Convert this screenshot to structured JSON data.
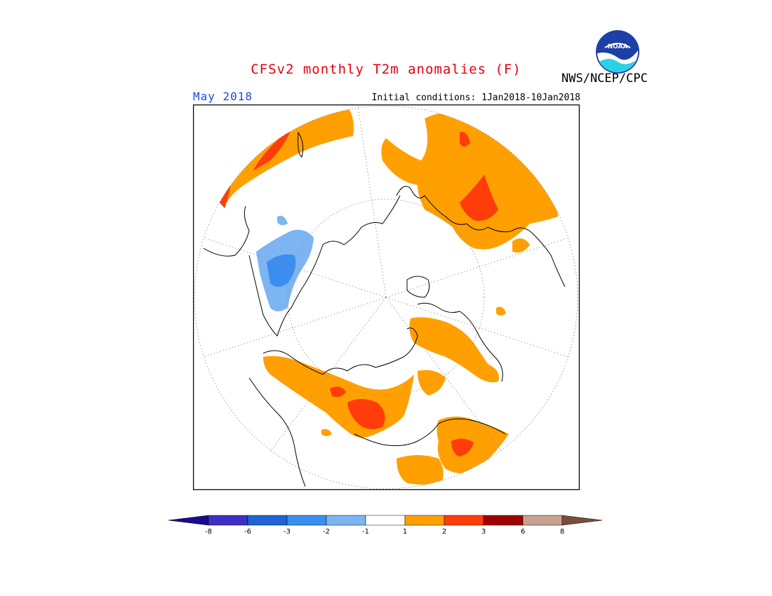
{
  "header": {
    "title": "CFSv2 monthly T2m anomalies (F)",
    "title_color": "#e8000b",
    "month": "May 2018",
    "month_color": "#1f48e8",
    "initial_conditions": "Initial conditions: 1Jan2018-10Jan2018",
    "agency": "NWS/NCEP/CPC",
    "logo_text": "NOAA"
  },
  "map": {
    "projection": "north polar stereographic",
    "variable": "2m temperature anomaly",
    "units": "F"
  },
  "colorbar": {
    "tick_labels": [
      "-8",
      "-6",
      "-3",
      "-2",
      "-1",
      "1",
      "2",
      "3",
      "6",
      "8"
    ],
    "under_color": "#1a0a8c",
    "over_color": "#7a4e36",
    "colors": [
      "#3e2fc4",
      "#1f63d6",
      "#3b8ef0",
      "#7db4f2",
      "#ffffff",
      "#ffa000",
      "#ff3c0a",
      "#a00000",
      "#caa090"
    ]
  }
}
